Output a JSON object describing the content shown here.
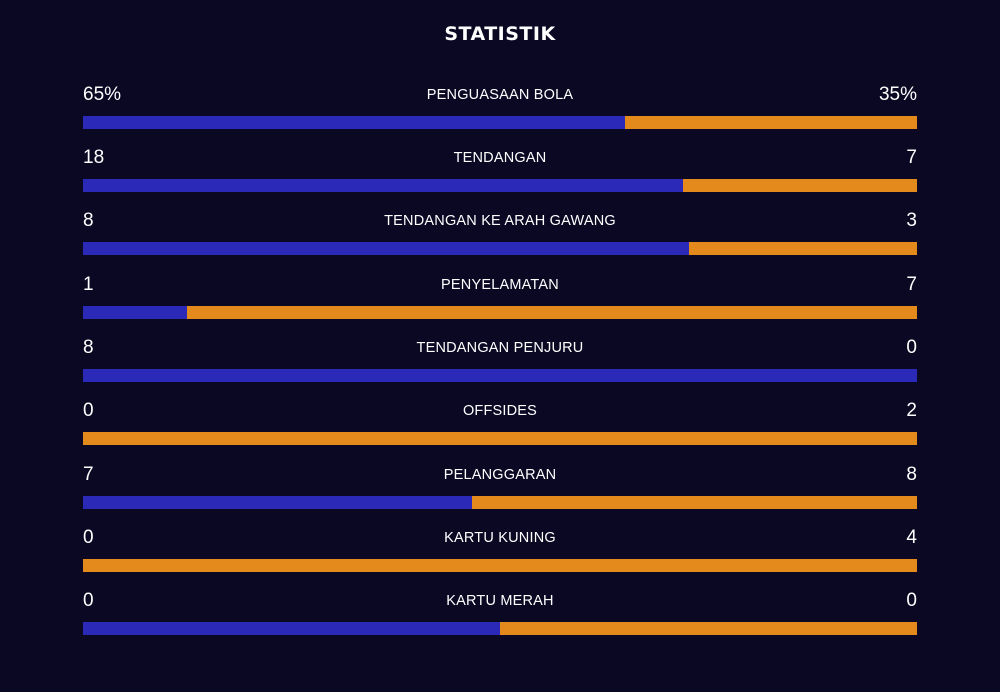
{
  "title": "STATISTIK",
  "colors": {
    "background": "#0a0823",
    "home": "#2b2ab8",
    "away": "#e48a1c"
  },
  "stats": [
    {
      "label": "PENGUASAAN BOLA",
      "home": "65%",
      "away": "35%",
      "home_share": 0.65
    },
    {
      "label": "TENDANGAN",
      "home": "18",
      "away": "7",
      "home_share": 0.72
    },
    {
      "label": "TENDANGAN KE ARAH GAWANG",
      "home": "8",
      "away": "3",
      "home_share": 0.727
    },
    {
      "label": "PENYELAMATAN",
      "home": "1",
      "away": "7",
      "home_share": 0.125
    },
    {
      "label": "TENDANGAN PENJURU",
      "home": "8",
      "away": "0",
      "home_share": 1.0
    },
    {
      "label": "OFFSIDES",
      "home": "0",
      "away": "2",
      "home_share": 0.0
    },
    {
      "label": "PELANGGARAN",
      "home": "7",
      "away": "8",
      "home_share": 0.467
    },
    {
      "label": "KARTU KUNING",
      "home": "0",
      "away": "4",
      "home_share": 0.0
    },
    {
      "label": "KARTU MERAH",
      "home": "0",
      "away": "0",
      "home_share": 0.5
    }
  ]
}
